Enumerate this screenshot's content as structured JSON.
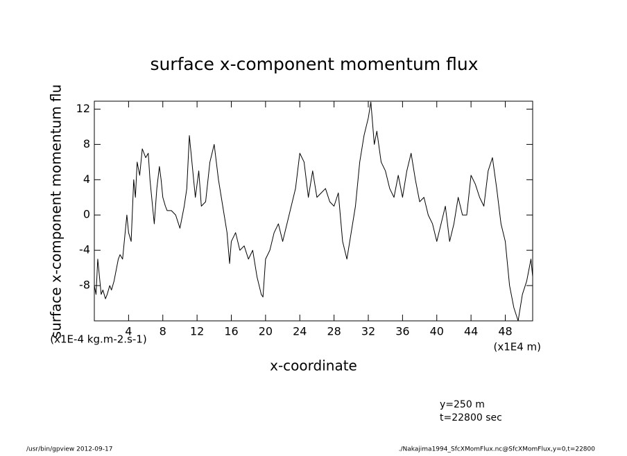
{
  "chart_data": {
    "type": "line",
    "title": "surface x-component momentum flux",
    "x_label": "x-coordinate",
    "y_label": "surface x-component momentum flu",
    "y_units": "(x1E-4 kg.m-2.s-1)",
    "x_units": "(x1E4 m)",
    "annotations": [
      "y=250 m",
      "t=22800 sec"
    ],
    "footer_left": "/usr/bin/gpview  2012-09-17",
    "footer_right": "./Nakajima1994_SfcXMomFlux.nc@SfcXMomFlux,y=0,t=22800",
    "x": [
      0,
      0.2,
      0.4,
      0.6,
      0.8,
      1,
      1.3,
      1.5,
      1.8,
      2,
      2.3,
      2.5,
      2.8,
      3,
      3.3,
      3.5,
      3.8,
      4,
      4.3,
      4.6,
      4.8,
      5,
      5.3,
      5.6,
      6,
      6.3,
      6.5,
      6.8,
      7,
      7.3,
      7.6,
      7.8,
      8,
      8.3,
      8.5,
      9,
      9.5,
      10,
      10.5,
      10.8,
      11.1,
      11.5,
      11.8,
      12.2,
      12.5,
      13,
      13.5,
      14,
      14.5,
      15,
      15.5,
      15.8,
      16,
      16.5,
      17,
      17.5,
      18,
      18.5,
      19,
      19.5,
      19.7,
      20,
      20.5,
      21,
      21.5,
      22,
      22.5,
      23,
      23.5,
      24,
      24.5,
      25,
      25.5,
      26,
      26.5,
      27,
      27.5,
      28,
      28.5,
      29,
      29.5,
      30,
      30.5,
      31,
      31.5,
      32,
      32.3,
      32.7,
      33,
      33.5,
      34,
      34.5,
      35,
      35.5,
      36,
      36.5,
      37,
      37.5,
      38,
      38.5,
      39,
      39.5,
      40,
      40.5,
      41,
      41.5,
      42,
      42.5,
      43,
      43.5,
      44,
      44.5,
      45,
      45.5,
      46,
      46.5,
      47,
      47.5,
      48,
      48.5,
      49,
      49.5,
      50,
      50.5,
      51,
      51.2
    ],
    "values": [
      -8,
      -9,
      -5,
      -7,
      -9,
      -8.5,
      -9.5,
      -9,
      -8,
      -8.5,
      -7.5,
      -6.5,
      -5,
      -4.5,
      -5,
      -3,
      0,
      -2,
      -3,
      4,
      2,
      6,
      4.5,
      7.5,
      6.5,
      7,
      4,
      1,
      -1,
      3,
      5.5,
      4,
      2,
      1,
      0.5,
      0.5,
      0,
      -1.5,
      1,
      3,
      9,
      5,
      2,
      5,
      1,
      1.5,
      6,
      8,
      4,
      1,
      -2,
      -5.5,
      -3,
      -2,
      -4,
      -3.5,
      -5,
      -4,
      -7,
      -9,
      -9.3,
      -5,
      -4,
      -2,
      -1,
      -3,
      -1,
      1,
      3,
      7,
      6,
      2,
      5,
      2,
      2.5,
      3,
      1.5,
      1,
      2.5,
      -3,
      -5,
      -2,
      1,
      6,
      9,
      11,
      12.8,
      8,
      9.5,
      6,
      5,
      3,
      2,
      4.5,
      2,
      5,
      7,
      4,
      1.5,
      2,
      0,
      -1,
      -3,
      -1,
      1,
      -3,
      -1,
      2,
      0,
      0,
      4.5,
      3.5,
      2,
      1,
      5,
      6.5,
      3,
      -1,
      -3,
      -8,
      -10.5,
      -12,
      -9,
      -7.5,
      -5,
      -7
    ],
    "color": "#000000",
    "xlim": [
      0,
      51.2
    ],
    "ylim": [
      -12,
      12.9
    ],
    "xticks": [
      4,
      8,
      12,
      16,
      20,
      24,
      28,
      32,
      36,
      40,
      44,
      48
    ],
    "yticks": [
      -8,
      -4,
      0,
      4,
      8,
      12
    ]
  }
}
